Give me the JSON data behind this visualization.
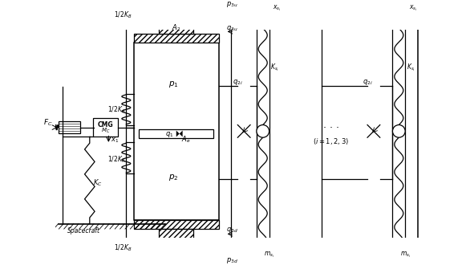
{
  "fig_width": 5.81,
  "fig_height": 3.3,
  "dpi": 100,
  "bg_color": "#ffffff",
  "labels": {
    "FC": "$F_C$",
    "CMG": "CMG",
    "MC": "$M_C$",
    "x1": "$x_1$",
    "KC": "$K_C$",
    "Spacecraft": "Spacecraft",
    "half_KB_top": "$1/2K_B$",
    "half_KB_bot": "$1/2K_B$",
    "half_KA_top": "$1/2K_A$",
    "half_KA_bot": "$1/2K_A$",
    "A2": "$A_2$",
    "p1": "$p_1$",
    "p2": "$p_2$",
    "p3u": "$p_{3u}$",
    "p3d": "$p_{3d}$",
    "q3u": "$q_{3u}$",
    "q3d": "$q_{3d}$",
    "q1": "$q_1$",
    "Ae": "$A_e$",
    "q2i": "$q_{2i}$",
    "Ksi": "$K_{s_i}$",
    "xsi": "$x_{s_i}$",
    "msi": "$m_{s_i}$",
    "i123": "$(i=1,2,3)$"
  }
}
